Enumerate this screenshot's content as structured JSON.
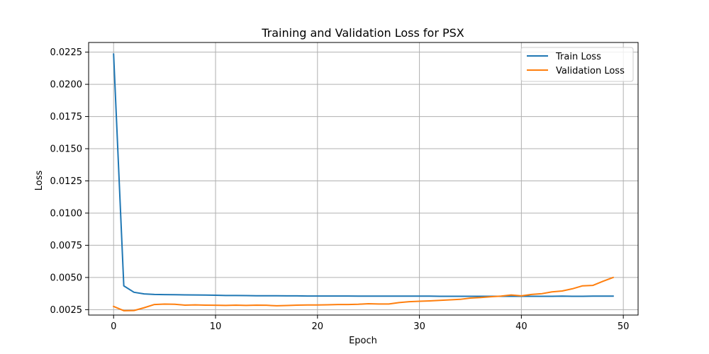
{
  "chart_data": {
    "type": "line",
    "title": "Training and Validation Loss for PSX",
    "xlabel": "Epoch",
    "ylabel": "Loss",
    "xlim": [
      -2.45,
      51.45
    ],
    "ylim": [
      0.00208,
      0.02325
    ],
    "xticks": [
      0,
      10,
      20,
      30,
      40,
      50
    ],
    "xtick_labels": [
      "0",
      "10",
      "20",
      "30",
      "40",
      "50"
    ],
    "yticks": [
      0.0025,
      0.005,
      0.0075,
      0.01,
      0.0125,
      0.015,
      0.0175,
      0.02,
      0.0225
    ],
    "ytick_labels": [
      "0.0025",
      "0.0050",
      "0.0075",
      "0.0100",
      "0.0125",
      "0.0150",
      "0.0175",
      "0.0200",
      "0.0225"
    ],
    "grid": true,
    "legend_position": "top-right",
    "x": [
      0,
      1,
      2,
      3,
      4,
      5,
      6,
      7,
      8,
      9,
      10,
      11,
      12,
      13,
      14,
      15,
      16,
      17,
      18,
      19,
      20,
      21,
      22,
      23,
      24,
      25,
      26,
      27,
      28,
      29,
      30,
      31,
      32,
      33,
      34,
      35,
      36,
      37,
      38,
      39,
      40,
      41,
      42,
      43,
      44,
      45,
      46,
      47,
      48,
      49
    ],
    "series": [
      {
        "name": "Train Loss",
        "color": "#1f77b4",
        "values": [
          0.02235,
          0.00435,
          0.00385,
          0.00372,
          0.00368,
          0.00367,
          0.00366,
          0.00365,
          0.00364,
          0.00363,
          0.00362,
          0.0036,
          0.0036,
          0.00359,
          0.00358,
          0.00358,
          0.00358,
          0.00357,
          0.00357,
          0.00356,
          0.00356,
          0.00356,
          0.00356,
          0.00356,
          0.00355,
          0.00355,
          0.00355,
          0.00355,
          0.00355,
          0.00355,
          0.00355,
          0.00355,
          0.00354,
          0.00354,
          0.00354,
          0.00354,
          0.00354,
          0.00354,
          0.00354,
          0.00354,
          0.00354,
          0.00354,
          0.00354,
          0.00354,
          0.00355,
          0.00354,
          0.00354,
          0.00355,
          0.00355,
          0.00355
        ]
      },
      {
        "name": "Validation Loss",
        "color": "#ff7f0e",
        "values": [
          0.00275,
          0.00242,
          0.00243,
          0.00265,
          0.0029,
          0.00293,
          0.00292,
          0.00285,
          0.00287,
          0.00285,
          0.00284,
          0.00283,
          0.00285,
          0.00283,
          0.00285,
          0.00284,
          0.0028,
          0.00282,
          0.00285,
          0.00286,
          0.00286,
          0.00288,
          0.0029,
          0.0029,
          0.00292,
          0.00296,
          0.00294,
          0.00294,
          0.00305,
          0.00312,
          0.00315,
          0.00318,
          0.00322,
          0.00326,
          0.0033,
          0.0034,
          0.00344,
          0.0035,
          0.00355,
          0.00364,
          0.00357,
          0.00368,
          0.00374,
          0.00388,
          0.00395,
          0.00412,
          0.00435,
          0.00438,
          0.0047,
          0.005
        ]
      }
    ]
  }
}
